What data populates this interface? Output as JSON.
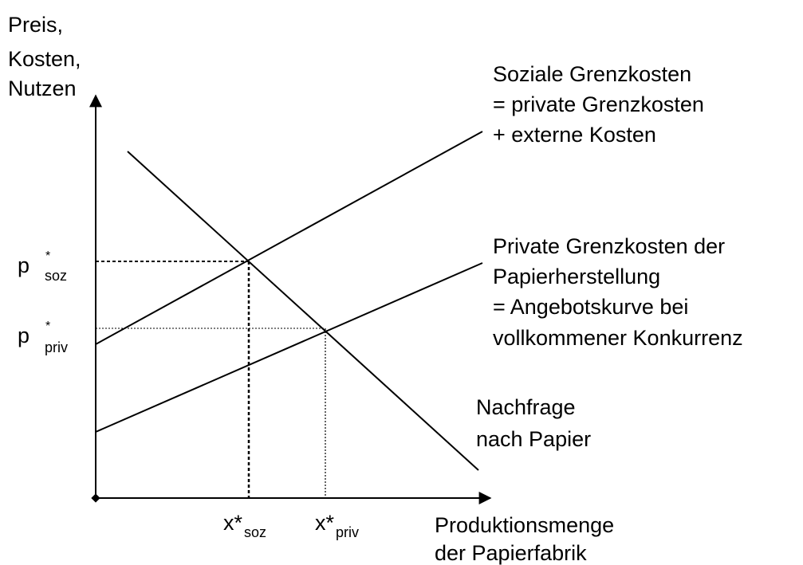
{
  "y_axis_label": [
    "Preis,",
    "Kosten,",
    "Nutzen"
  ],
  "x_axis_label": [
    "Produktionsmenge",
    "der Papierfabrik"
  ],
  "curves": {
    "social_cost": [
      "Soziale Grenzkosten",
      "= private Grenzkosten",
      "+ externe Kosten"
    ],
    "private_cost": [
      "Private Grenzkosten der",
      "Papierherstellung",
      "= Angebotskurve bei",
      "vollkommener Konkurrenz"
    ],
    "demand": [
      "Nachfrage",
      "nach Papier"
    ]
  },
  "points": {
    "p_soz": {
      "symbol": "p",
      "star": "*",
      "sub": "soz"
    },
    "p_priv": {
      "symbol": "p",
      "star": "*",
      "sub": "priv"
    },
    "x_soz": {
      "symbol": "x*",
      "sub": "soz"
    },
    "x_priv": {
      "symbol": "x*",
      "sub": "priv"
    }
  }
}
